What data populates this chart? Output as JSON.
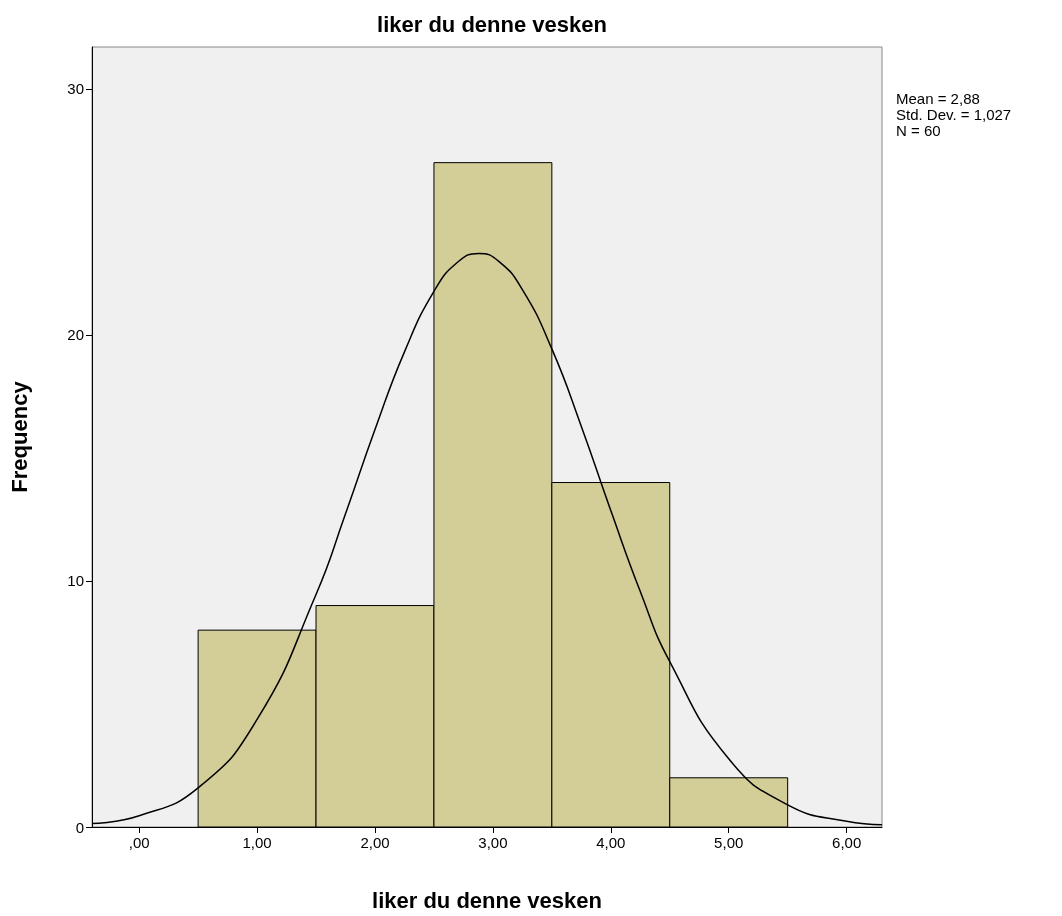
{
  "chart_data": {
    "type": "histogram",
    "title": "liker du denne vesken",
    "xlabel": "liker du denne vesken",
    "ylabel": "Frequency",
    "bins": [
      0.5,
      1.5,
      2.5,
      3.5,
      4.5,
      5.5
    ],
    "values": [
      8,
      9,
      27,
      14,
      2
    ],
    "color": "#d3cd98",
    "series": [
      {
        "type": "line",
        "color": "#000000",
        "x": [
          -0.4,
          0,
          0.5,
          1,
          1.5,
          1.75,
          2,
          2.25,
          2.5,
          2.7,
          2.88,
          3.05,
          3.25,
          3.5,
          3.75,
          4,
          4.25,
          4.5,
          5,
          5.5,
          6,
          6.3
        ],
        "values": [
          0.14,
          0.46,
          1.59,
          4.37,
          9.45,
          12.73,
          16.15,
          19.31,
          21.77,
          22.95,
          23.31,
          22.99,
          21.84,
          19.43,
          16.28,
          12.86,
          9.57,
          6.72,
          2.77,
          0.9,
          0.23,
          0.09
        ]
      }
    ],
    "xlim": [
      -0.4,
      6.3
    ],
    "xticks": [
      {
        "value": 0,
        "label": ",00"
      },
      {
        "value": 1,
        "label": "1,00"
      },
      {
        "value": 2,
        "label": "2,00"
      },
      {
        "value": 3,
        "label": "3,00"
      },
      {
        "value": 4,
        "label": "4,00"
      },
      {
        "value": 5,
        "label": "5,00"
      },
      {
        "value": 6,
        "label": "6,00"
      }
    ],
    "ylim": [
      0,
      31.7
    ],
    "yticks": [
      0,
      10,
      20,
      30
    ],
    "annotations": [
      "Mean = 2,88",
      "Std. Dev. = 1,027",
      "N = 60"
    ],
    "grid": false,
    "marker": "none",
    "line_style": "solid"
  }
}
